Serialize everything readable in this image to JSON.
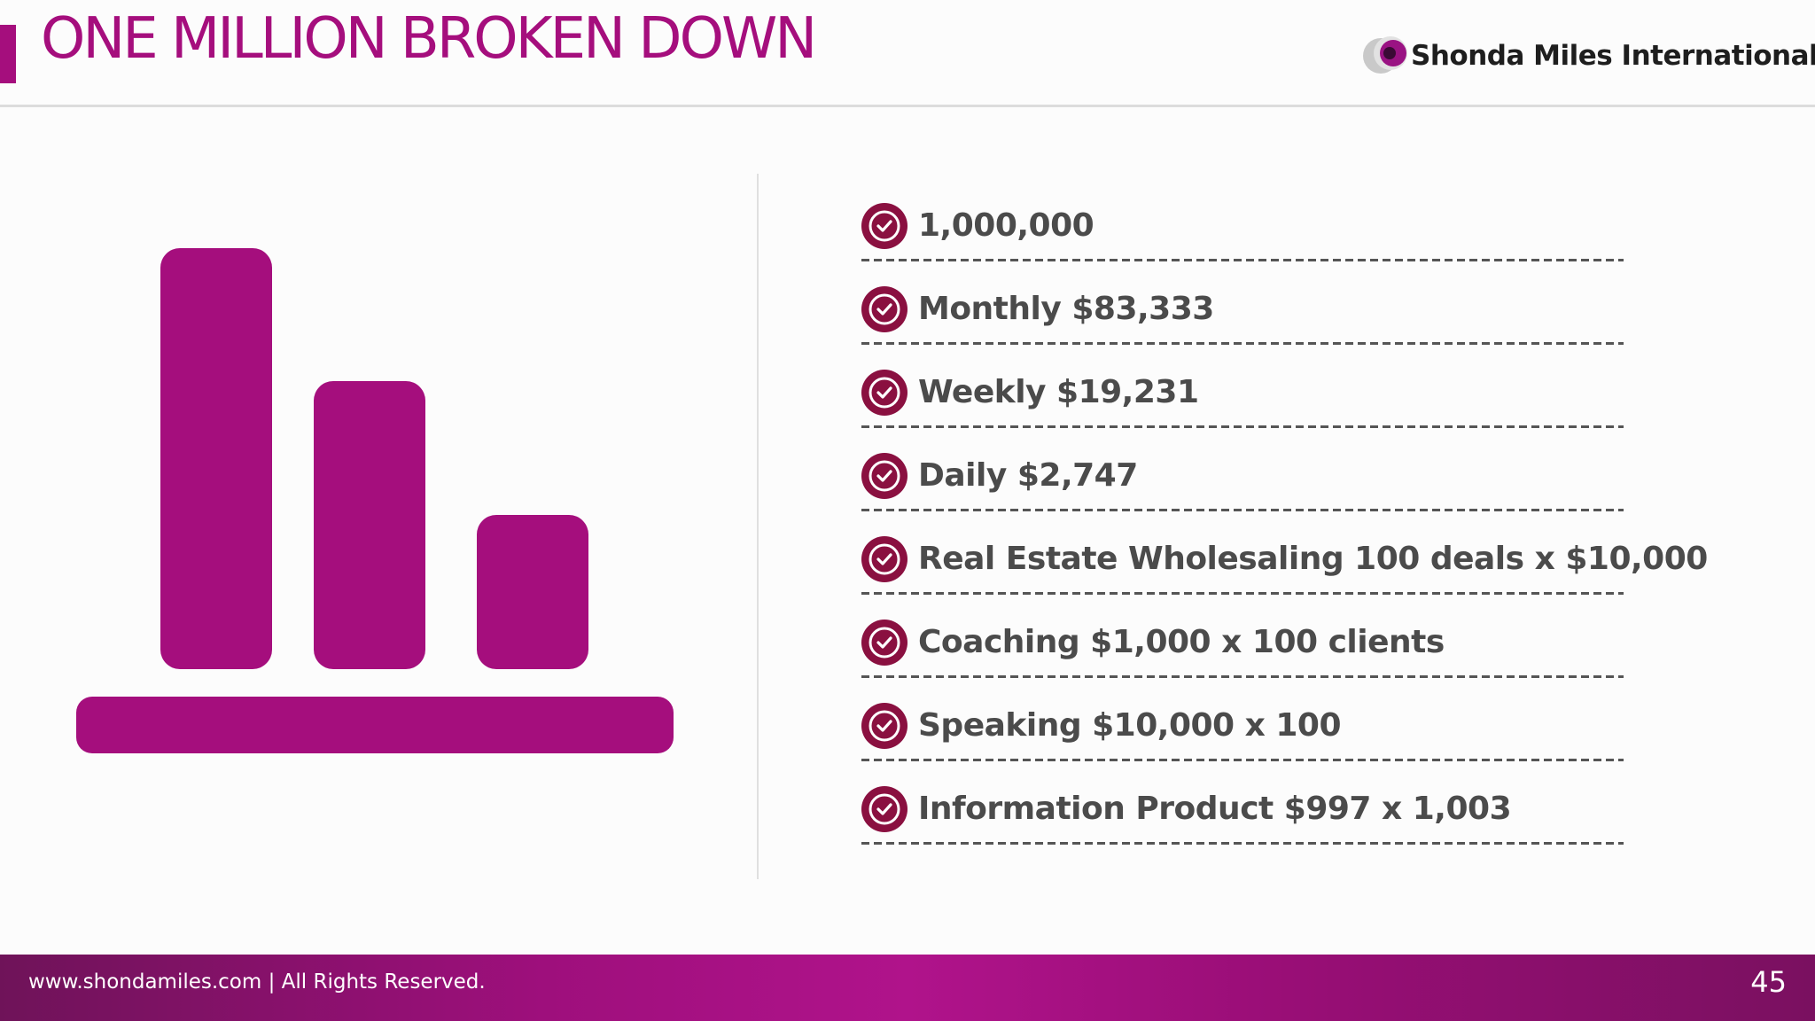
{
  "slide": {
    "title": "ONE MILLION BROKEN DOWN",
    "brand_color": "#a50e7d",
    "icon": "bar-chart-icon"
  },
  "logo": {
    "name": "Shonda Miles International",
    "icon": "logo-mark-icon"
  },
  "checklist": {
    "icon": "check-circle-icon",
    "icon_color": "#8a1040",
    "items": [
      "1,000,000",
      "Monthly $83,333",
      "Weekly $19,231",
      "Daily $2,747",
      "Real Estate Wholesaling 100 deals x $10,000",
      "Coaching $1,000 x 100 clients",
      "Speaking $10,000 x 100",
      "Information Product $997 x 1,003"
    ]
  },
  "footer": {
    "text": "www.shondamiles.com | All Rights Reserved.",
    "page_number": "45"
  }
}
